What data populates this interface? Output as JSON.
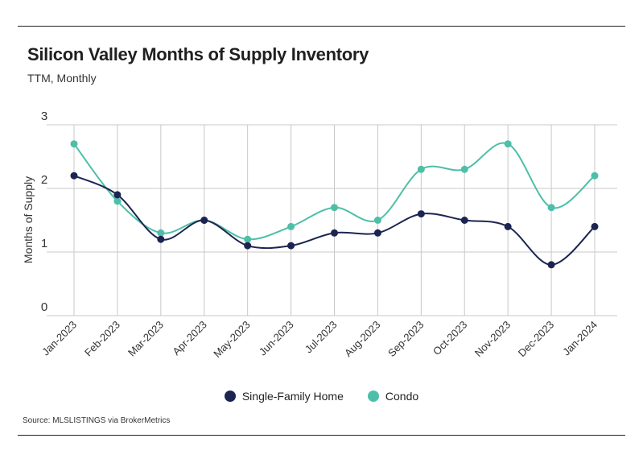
{
  "chart_data": {
    "type": "line",
    "title": "Silicon Valley Months of Supply Inventory",
    "subtitle": "TTM, Monthly",
    "ylabel": "Months of Supply",
    "xlabel": "",
    "ylim": [
      0,
      3
    ],
    "yticks": [
      0,
      1,
      2,
      3
    ],
    "grid": true,
    "legend": "bottom-center",
    "categories": [
      "Jan-2023",
      "Feb-2023",
      "Mar-2023",
      "Apr-2023",
      "May-2023",
      "Jun-2023",
      "Jul-2023",
      "Aug-2023",
      "Sep-2023",
      "Oct-2023",
      "Nov-2023",
      "Dec-2023",
      "Jan-2024"
    ],
    "series": [
      {
        "name": "Single-Family Home",
        "color": "#1c2551",
        "values": [
          2.2,
          1.9,
          1.2,
          1.5,
          1.1,
          1.1,
          1.3,
          1.3,
          1.6,
          1.5,
          1.4,
          0.8,
          1.4
        ]
      },
      {
        "name": "Condo",
        "color": "#4dbfa8",
        "values": [
          2.7,
          1.8,
          1.3,
          1.5,
          1.2,
          1.4,
          1.7,
          1.5,
          2.3,
          2.3,
          2.7,
          1.7,
          2.2
        ]
      }
    ]
  },
  "source": "Source:  MLSLISTINGS via BrokerMetrics"
}
